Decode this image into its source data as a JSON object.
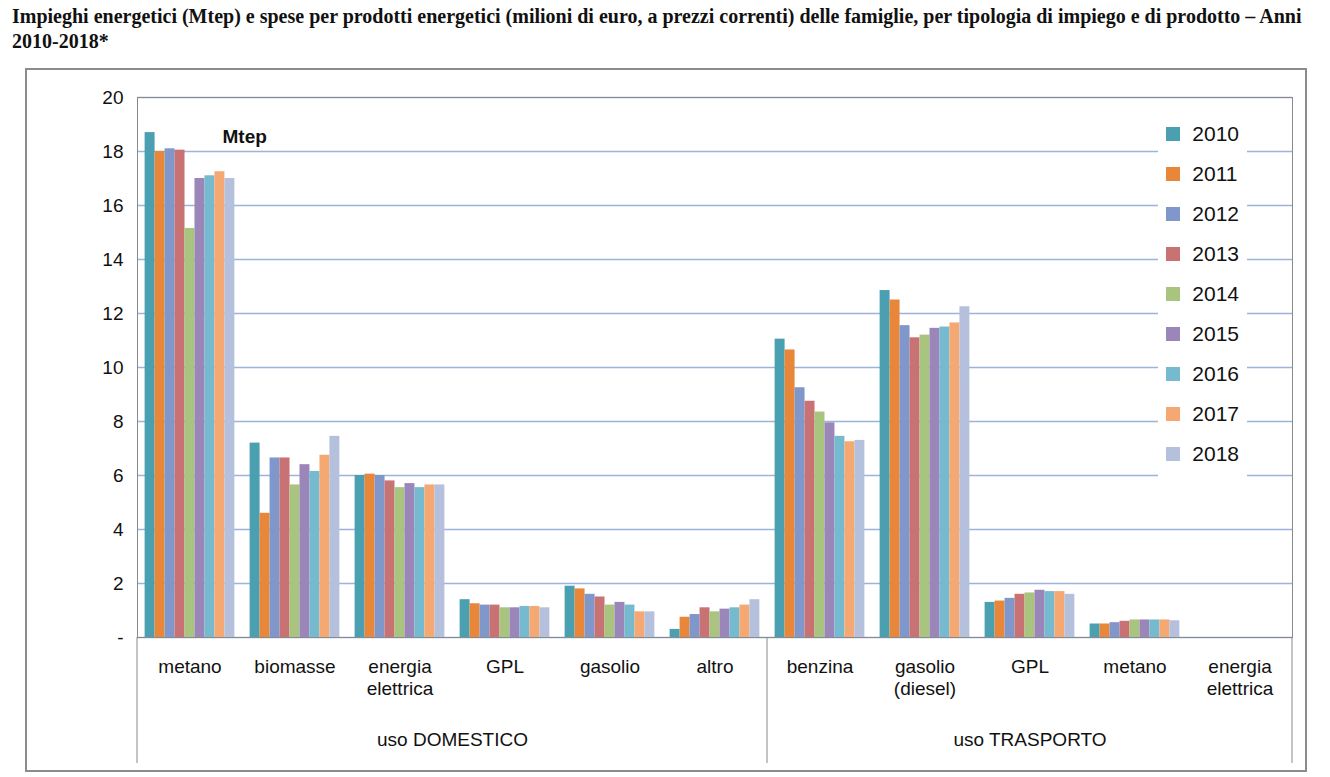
{
  "chart_data": {
    "type": "bar",
    "title": "Impieghi energetici (Mtep) e spese per prodotti energetici (milioni di euro, a prezzi correnti) delle famiglie, per tipologia di impiego e di prodotto – Anni 2010-2018*",
    "ylabel": "Mtep",
    "categories": [
      "metano",
      "biomasse",
      "energia elettrica",
      "GPL",
      "gasolio",
      "altro",
      "benzina",
      "gasolio (diesel)",
      "GPL",
      "metano",
      "energia elettrica"
    ],
    "groups": [
      "uso DOMESTICO",
      "uso DOMESTICO",
      "uso DOMESTICO",
      "uso DOMESTICO",
      "uso DOMESTICO",
      "uso DOMESTICO",
      "uso TRASPORTO",
      "uso TRASPORTO",
      "uso TRASPORTO",
      "uso TRASPORTO",
      "uso TRASPORTO"
    ],
    "series": [
      {
        "name": "2010",
        "color": "#4a9fb1",
        "values": [
          18.7,
          7.2,
          6.0,
          1.4,
          1.9,
          0.3,
          11.05,
          12.85,
          1.3,
          0.5,
          null
        ]
      },
      {
        "name": "2011",
        "color": "#e8873a",
        "values": [
          18.0,
          4.6,
          6.05,
          1.25,
          1.8,
          0.75,
          10.65,
          12.5,
          1.35,
          0.5,
          null
        ]
      },
      {
        "name": "2012",
        "color": "#7f97ca",
        "values": [
          18.1,
          6.65,
          6.0,
          1.2,
          1.6,
          0.85,
          9.25,
          11.55,
          1.45,
          0.55,
          null
        ]
      },
      {
        "name": "2013",
        "color": "#c97273",
        "values": [
          18.05,
          6.65,
          5.8,
          1.2,
          1.5,
          1.1,
          8.75,
          11.1,
          1.6,
          0.6,
          null
        ]
      },
      {
        "name": "2014",
        "color": "#a8c47e",
        "values": [
          15.15,
          5.65,
          5.55,
          1.1,
          1.2,
          0.95,
          8.35,
          11.2,
          1.65,
          0.65,
          null
        ]
      },
      {
        "name": "2015",
        "color": "#9a86b8",
        "values": [
          17.0,
          6.4,
          5.7,
          1.1,
          1.3,
          1.05,
          7.95,
          11.45,
          1.75,
          0.65,
          null
        ]
      },
      {
        "name": "2016",
        "color": "#76bad0",
        "values": [
          17.1,
          6.15,
          5.55,
          1.15,
          1.2,
          1.1,
          7.45,
          11.5,
          1.7,
          0.65,
          null
        ]
      },
      {
        "name": "2017",
        "color": "#f6a873",
        "values": [
          17.25,
          6.75,
          5.65,
          1.15,
          0.95,
          1.2,
          7.25,
          11.65,
          1.7,
          0.65,
          null
        ]
      },
      {
        "name": "2018",
        "color": "#b4c0dc",
        "values": [
          17.0,
          7.45,
          5.65,
          1.1,
          0.95,
          1.4,
          7.3,
          12.25,
          1.6,
          0.62,
          null
        ]
      }
    ],
    "ylim": [
      0,
      20
    ],
    "yticks": [
      {
        "value": 0,
        "label": "-"
      },
      2,
      4,
      6,
      8,
      10,
      12,
      14,
      16,
      18,
      20
    ],
    "grid": true,
    "legend": "top-right"
  }
}
